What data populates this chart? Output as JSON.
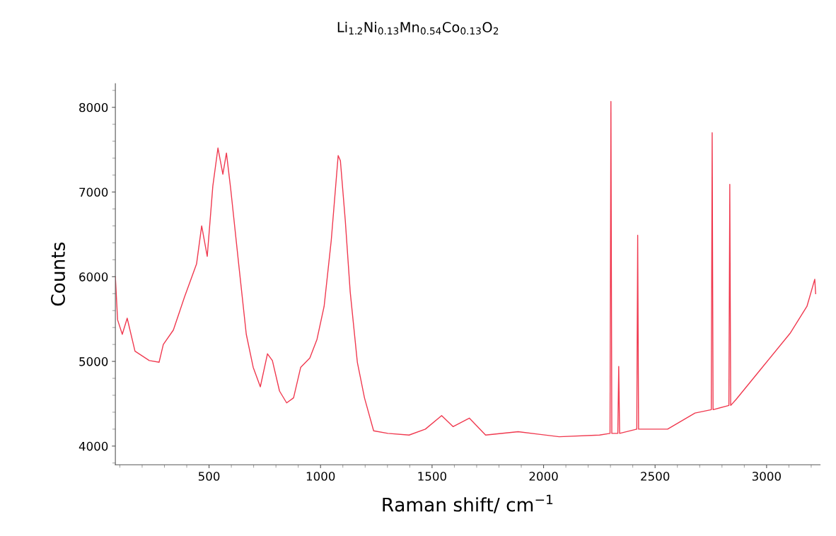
{
  "chart_data": {
    "type": "line",
    "title": "Li$_{1.2}$Ni$_{0.13}$Mn$_{0.54}$Co$_{0.13}$O$_{2}$",
    "xlabel": "Raman shift/ cm$^{−1}$",
    "ylabel": "Counts",
    "xlim": [
      80,
      3240
    ],
    "xticks": [
      500,
      1000,
      1500,
      2000,
      2500,
      3000
    ],
    "ylim": [
      3780,
      8280
    ],
    "yticks": [
      4000,
      5000,
      6000,
      7000,
      8000
    ],
    "grid": false,
    "marker": "none",
    "line_style": "solid",
    "series": [
      {
        "color": "#f0394f",
        "x": [
          80,
          90,
          111,
          133,
          168,
          232,
          276,
          295,
          340,
          390,
          444,
          467,
          492,
          517,
          540,
          562,
          578,
          597,
          635,
          667,
          698,
          730,
          762,
          784,
          816,
          848,
          879,
          911,
          952,
          984,
          1016,
          1048,
          1079,
          1089,
          1111,
          1133,
          1165,
          1197,
          1238,
          1302,
          1397,
          1470,
          1543,
          1594,
          1667,
          1740,
          1886,
          2070,
          2251,
          2298,
          2302,
          2306,
          2333,
          2337,
          2341,
          2418,
          2422,
          2426,
          2556,
          2679,
          2752,
          2756,
          2760,
          2831,
          2835,
          2839,
          2863,
          2984,
          3105,
          3181,
          3216,
          3220
        ],
        "values": [
          6000,
          5490,
          5320,
          5510,
          5120,
          5010,
          4990,
          5200,
          5370,
          5760,
          6150,
          6600,
          6240,
          7070,
          7520,
          7210,
          7460,
          7040,
          6100,
          5320,
          4930,
          4700,
          5090,
          5010,
          4650,
          4510,
          4570,
          4930,
          5040,
          5260,
          5650,
          6430,
          7430,
          7370,
          6660,
          5820,
          4990,
          4570,
          4180,
          4150,
          4130,
          4200,
          4360,
          4230,
          4330,
          4130,
          4170,
          4110,
          4130,
          4150,
          8070,
          4150,
          4150,
          4940,
          4150,
          4200,
          6490,
          4200,
          4200,
          4390,
          4430,
          7700,
          4430,
          4480,
          7090,
          4480,
          4550,
          4940,
          5330,
          5650,
          5970,
          5800
        ]
      }
    ]
  }
}
